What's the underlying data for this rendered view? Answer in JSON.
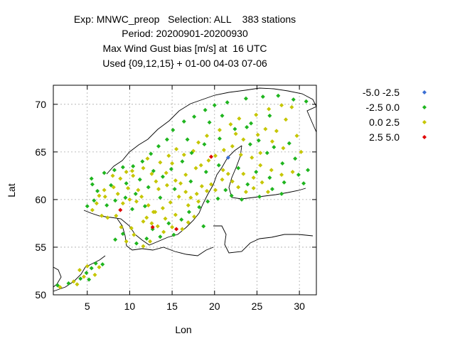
{
  "header": {
    "title_line1": "Exp: MNWC_preop   Selection: ALL    383 stations",
    "title_line2": "Period: 20200901-20200930",
    "title_line3": "Max Wind Gust bias [m/s] at  16 UTC",
    "title_line4": "Used {09,12,15} + 01-00 04-03 07-06"
  },
  "chart_data": {
    "type": "scatter",
    "xlabel": "Lon",
    "ylabel": "Lat",
    "xlim": [
      1,
      32
    ],
    "ylim": [
      50,
      72
    ],
    "xticks": [
      5,
      10,
      15,
      20,
      25,
      30
    ],
    "yticks": [
      50,
      55,
      60,
      65,
      70
    ],
    "grid": true,
    "legend_position": "top-right",
    "series": [
      {
        "name": "-5.0 -2.5",
        "color": "#3b6fd4",
        "points": [
          [
            21.6,
            64.4
          ]
        ]
      },
      {
        "name": "-2.5 0.0",
        "color": "#1fb51f",
        "points": [
          [
            1.5,
            51.0
          ],
          [
            2.8,
            51.2
          ],
          [
            4.2,
            51.7
          ],
          [
            4.9,
            52.3
          ],
          [
            5.5,
            52.8
          ],
          [
            6.0,
            53.3
          ],
          [
            6.8,
            53.2
          ],
          [
            5.2,
            51.6
          ],
          [
            5.0,
            59.3
          ],
          [
            5.8,
            59.9
          ],
          [
            6.2,
            60.9
          ],
          [
            5.6,
            61.6
          ],
          [
            5.5,
            62.2
          ],
          [
            7.0,
            62.8
          ],
          [
            8.2,
            63.1
          ],
          [
            9.2,
            63.4
          ],
          [
            10.4,
            63.5
          ],
          [
            11.5,
            64.0
          ],
          [
            12.5,
            64.8
          ],
          [
            13.4,
            65.6
          ],
          [
            14.4,
            66.3
          ],
          [
            15.1,
            67.3
          ],
          [
            16.4,
            68.2
          ],
          [
            17.6,
            68.7
          ],
          [
            18.9,
            69.4
          ],
          [
            20.0,
            69.9
          ],
          [
            21.5,
            70.2
          ],
          [
            23.7,
            70.6
          ],
          [
            25.7,
            70.8
          ],
          [
            27.5,
            70.9
          ],
          [
            29.3,
            70.5
          ],
          [
            30.8,
            70.3
          ],
          [
            26.5,
            68.8
          ],
          [
            24.3,
            68.0
          ],
          [
            22.4,
            67.4
          ],
          [
            20.6,
            66.4
          ],
          [
            18.8,
            65.8
          ],
          [
            17.3,
            64.9
          ],
          [
            16.2,
            64.0
          ],
          [
            14.9,
            63.2
          ],
          [
            13.9,
            62.4
          ],
          [
            12.2,
            61.3
          ],
          [
            10.7,
            60.6
          ],
          [
            9.5,
            60.2
          ],
          [
            8.3,
            59.9
          ],
          [
            7.3,
            59.4
          ],
          [
            10.3,
            59.0
          ],
          [
            11.8,
            59.3
          ],
          [
            13.6,
            60.2
          ],
          [
            15.3,
            61.1
          ],
          [
            17.2,
            61.9
          ],
          [
            19.0,
            62.9
          ],
          [
            20.5,
            63.6
          ],
          [
            22.8,
            63.3
          ],
          [
            24.9,
            62.9
          ],
          [
            26.5,
            62.3
          ],
          [
            28.2,
            61.8
          ],
          [
            29.9,
            62.6
          ],
          [
            31.0,
            63.1
          ],
          [
            30.5,
            61.7
          ],
          [
            27.9,
            60.6
          ],
          [
            25.3,
            60.3
          ],
          [
            23.2,
            60.0
          ],
          [
            22.0,
            60.4
          ],
          [
            20.4,
            60.1
          ],
          [
            19.2,
            59.8
          ],
          [
            18.2,
            59.2
          ],
          [
            17.0,
            58.7
          ],
          [
            16.1,
            57.9
          ],
          [
            14.6,
            57.5
          ],
          [
            12.7,
            56.9
          ],
          [
            13.6,
            56.1
          ],
          [
            15.2,
            56.3
          ],
          [
            9.2,
            56.4
          ],
          [
            8.3,
            55.8
          ],
          [
            10.8,
            55.4
          ],
          [
            12.0,
            55.9
          ],
          [
            18.7,
            57.2
          ],
          [
            23.8,
            67.6
          ],
          [
            25.2,
            66.2
          ],
          [
            27.0,
            65.5
          ],
          [
            28.8,
            65.9
          ],
          [
            29.5,
            64.3
          ],
          [
            28.0,
            63.8
          ],
          [
            26.2,
            64.9
          ],
          [
            24.2,
            65.8
          ],
          [
            21.3,
            61.0
          ],
          [
            23.9,
            61.6
          ],
          [
            26.8,
            61.1
          ],
          [
            12.8,
            63.0
          ],
          [
            11.2,
            62.1
          ],
          [
            7.8,
            61.5
          ],
          [
            9.6,
            61.7
          ],
          [
            16.8,
            66.3
          ],
          [
            19.4,
            68.1
          ],
          [
            20.9,
            68.8
          ]
        ]
      },
      {
        "name": "0.0 2.5",
        "color": "#c6c600",
        "points": [
          [
            1.8,
            50.8
          ],
          [
            3.4,
            51.4
          ],
          [
            4.6,
            51.9
          ],
          [
            5.9,
            52.1
          ],
          [
            6.4,
            52.9
          ],
          [
            4.1,
            52.6
          ],
          [
            5.0,
            53.0
          ],
          [
            3.8,
            51.1
          ],
          [
            6.7,
            58.3
          ],
          [
            7.4,
            58.1
          ],
          [
            8.4,
            58.3
          ],
          [
            5.6,
            58.9
          ],
          [
            6.1,
            59.6
          ],
          [
            6.4,
            60.4
          ],
          [
            7.0,
            61.0
          ],
          [
            8.1,
            61.3
          ],
          [
            9.2,
            59.6
          ],
          [
            10.0,
            60.0
          ],
          [
            10.8,
            59.8
          ],
          [
            11.4,
            60.3
          ],
          [
            12.2,
            59.4
          ],
          [
            13.0,
            58.7
          ],
          [
            13.9,
            59.1
          ],
          [
            14.8,
            59.7
          ],
          [
            15.8,
            60.3
          ],
          [
            16.6,
            60.8
          ],
          [
            17.9,
            60.6
          ],
          [
            18.5,
            61.4
          ],
          [
            19.6,
            61.6
          ],
          [
            16.6,
            62.6
          ],
          [
            17.8,
            63.3
          ],
          [
            15.4,
            62.0
          ],
          [
            14.4,
            61.5
          ],
          [
            13.1,
            61.9
          ],
          [
            12.6,
            62.7
          ],
          [
            11.6,
            63.3
          ],
          [
            10.4,
            62.5
          ],
          [
            9.6,
            62.9
          ],
          [
            8.9,
            62.2
          ],
          [
            8.0,
            62.5
          ],
          [
            7.1,
            60.3
          ],
          [
            8.6,
            60.6
          ],
          [
            9.8,
            61.2
          ],
          [
            12.0,
            58.1
          ],
          [
            12.6,
            57.5
          ],
          [
            11.6,
            57.7
          ],
          [
            13.3,
            57.2
          ],
          [
            14.0,
            56.6
          ],
          [
            15.0,
            57.1
          ],
          [
            16.2,
            56.9
          ],
          [
            16.9,
            57.6
          ],
          [
            17.6,
            58.2
          ],
          [
            15.4,
            58.4
          ],
          [
            14.2,
            58.0
          ],
          [
            16.9,
            59.4
          ],
          [
            18.1,
            59.8
          ],
          [
            20.9,
            62.1
          ],
          [
            21.6,
            62.7
          ],
          [
            22.1,
            61.9
          ],
          [
            22.8,
            61.3
          ],
          [
            23.7,
            60.8
          ],
          [
            24.6,
            61.2
          ],
          [
            25.6,
            61.8
          ],
          [
            26.3,
            60.8
          ],
          [
            24.4,
            64.4
          ],
          [
            25.4,
            64.9
          ],
          [
            23.1,
            64.7
          ],
          [
            22.1,
            65.6
          ],
          [
            21.1,
            65.2
          ],
          [
            20.1,
            64.6
          ],
          [
            19.3,
            64.1
          ],
          [
            18.4,
            63.6
          ],
          [
            17.5,
            65.1
          ],
          [
            16.4,
            64.7
          ],
          [
            15.5,
            65.3
          ],
          [
            14.6,
            64.6
          ],
          [
            13.6,
            63.9
          ],
          [
            18.1,
            66.0
          ],
          [
            19.1,
            66.7
          ],
          [
            20.6,
            67.3
          ],
          [
            21.9,
            67.9
          ],
          [
            22.9,
            68.5
          ],
          [
            24.9,
            68.9
          ],
          [
            26.4,
            69.5
          ],
          [
            27.9,
            69.9
          ],
          [
            29.1,
            69.7
          ],
          [
            28.4,
            68.4
          ],
          [
            27.3,
            67.2
          ],
          [
            26.0,
            67.4
          ],
          [
            25.1,
            66.8
          ],
          [
            23.4,
            66.3
          ],
          [
            22.5,
            66.9
          ],
          [
            26.8,
            66.1
          ],
          [
            28.1,
            65.4
          ],
          [
            29.7,
            66.7
          ],
          [
            30.2,
            65.0
          ],
          [
            29.2,
            62.9
          ],
          [
            27.9,
            62.6
          ],
          [
            26.7,
            63.1
          ],
          [
            25.4,
            63.6
          ],
          [
            24.6,
            62.3
          ],
          [
            23.4,
            62.7
          ],
          [
            21.0,
            63.1
          ],
          [
            10.2,
            57.0
          ],
          [
            9.6,
            55.6
          ],
          [
            9.0,
            57.1
          ],
          [
            10.5,
            56.3
          ],
          [
            12.4,
            55.6
          ],
          [
            11.6,
            55.1
          ],
          [
            12.8,
            58.7
          ],
          [
            13.4,
            61.1
          ],
          [
            14.3,
            62.8
          ],
          [
            15.0,
            63.8
          ],
          [
            16.0,
            61.7
          ],
          [
            17.2,
            60.2
          ],
          [
            19.1,
            60.9
          ],
          [
            20.1,
            61.0
          ],
          [
            11.0,
            61.0
          ],
          [
            10.3,
            63.0
          ],
          [
            12.1,
            64.3
          ]
        ]
      },
      {
        "name": "2.5 5.0",
        "color": "#e00000",
        "points": [
          [
            8.9,
            58.9
          ],
          [
            12.7,
            57.1
          ],
          [
            15.5,
            56.9
          ],
          [
            19.6,
            64.5
          ]
        ]
      }
    ]
  }
}
